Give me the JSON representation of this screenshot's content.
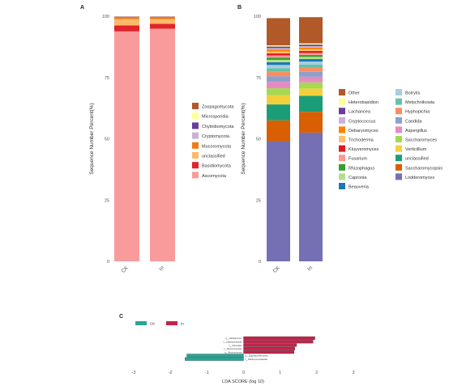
{
  "panel_labels": {
    "a": "A",
    "b": "B",
    "c": "C"
  },
  "chart_data": [
    {
      "panel": "A",
      "type": "bar",
      "stacked": true,
      "ylabel": "Sequence Number Percent(%)",
      "ylim": [
        0,
        100
      ],
      "yticks": [
        "0",
        "25",
        "50",
        "75",
        "100"
      ],
      "categories": [
        "CK",
        "In"
      ],
      "grid": false,
      "legend_position": "right",
      "series": [
        {
          "name": "Ascomycota",
          "color": "#fa9b9b",
          "values": [
            93.8,
            94.9
          ]
        },
        {
          "name": "Basidiomycota",
          "color": "#e3232a",
          "values": [
            2.4,
            2.0
          ]
        },
        {
          "name": "unclassified",
          "color": "#fcb96a",
          "values": [
            2.6,
            1.9
          ]
        },
        {
          "name": "Mucoromycota",
          "color": "#ef7b16",
          "values": [
            0.9,
            0.9
          ]
        },
        {
          "name": "Cryptomycota",
          "color": "#c9b3d7",
          "values": [
            0.1,
            0.1
          ]
        },
        {
          "name": "Chytridiomycota",
          "color": "#6a3d9a",
          "values": [
            0.1,
            0.1
          ]
        },
        {
          "name": "Microsporidia",
          "color": "#ffff99",
          "values": [
            0.05,
            0.05
          ]
        },
        {
          "name": "Zoopagomycota",
          "color": "#b15928",
          "values": [
            0.05,
            0.05
          ]
        }
      ]
    },
    {
      "panel": "B",
      "type": "bar",
      "stacked": true,
      "ylabel": "Sequence Number Percent(%)",
      "ylim": [
        0,
        100
      ],
      "yticks": [
        "0",
        "25",
        "50",
        "75",
        "100"
      ],
      "categories": [
        "CK",
        "In"
      ],
      "grid": false,
      "legend_position": "right",
      "series": [
        {
          "name": "Lodderomyces",
          "color": "#7570b3",
          "values": [
            49.0,
            52.5
          ]
        },
        {
          "name": "Saccharomycopsis",
          "color": "#d95f02",
          "values": [
            8.5,
            8.5
          ]
        },
        {
          "name": "unclassified",
          "color": "#1b9e77",
          "values": [
            6.5,
            6.5
          ]
        },
        {
          "name": "Verticillium",
          "color": "#f2d03a",
          "values": [
            3.8,
            3.0
          ]
        },
        {
          "name": "Saccharomyces",
          "color": "#a6d854",
          "values": [
            2.8,
            2.5
          ]
        },
        {
          "name": "Aspergillus",
          "color": "#e78ac3",
          "values": [
            2.6,
            2.3
          ]
        },
        {
          "name": "Candida",
          "color": "#8da0cb",
          "values": [
            2.3,
            2.0
          ]
        },
        {
          "name": "Hyphopichia",
          "color": "#fc8d62",
          "values": [
            1.8,
            1.6
          ]
        },
        {
          "name": "Metschnikowia",
          "color": "#66c2a5",
          "values": [
            1.5,
            1.4
          ]
        },
        {
          "name": "Botrytis",
          "color": "#a6cee3",
          "values": [
            1.3,
            1.2
          ]
        },
        {
          "name": "Beauveria",
          "color": "#1f78b4",
          "values": [
            1.1,
            1.0
          ]
        },
        {
          "name": "Capronia",
          "color": "#b2df8a",
          "values": [
            1.0,
            0.9
          ]
        },
        {
          "name": "Rhizophagus",
          "color": "#33a02c",
          "values": [
            0.9,
            0.8
          ]
        },
        {
          "name": "Fusarium",
          "color": "#fb9a99",
          "values": [
            0.9,
            0.8
          ]
        },
        {
          "name": "Kluyveromyces",
          "color": "#e31a1c",
          "values": [
            0.8,
            0.8
          ]
        },
        {
          "name": "Trichoderma",
          "color": "#fdbf6f",
          "values": [
            0.8,
            0.7
          ]
        },
        {
          "name": "Debaryomyces",
          "color": "#ff7f00",
          "values": [
            0.7,
            0.7
          ]
        },
        {
          "name": "Cryptococcus",
          "color": "#cab2d6",
          "values": [
            0.7,
            0.6
          ]
        },
        {
          "name": "Lachancea",
          "color": "#6a3d9a",
          "values": [
            0.6,
            0.6
          ]
        },
        {
          "name": "Heterobasidion",
          "color": "#ffff99",
          "values": [
            0.5,
            0.5
          ]
        },
        {
          "name": "Other",
          "color": "#b15928",
          "values": [
            11.1,
            10.7
          ]
        }
      ],
      "legend_order": [
        "Other",
        "Botrytis",
        "Heterobasidion",
        "Metschnikowia",
        "Lachancea",
        "Hyphopichia",
        "Cryptococcus",
        "Candida",
        "Debaryomyces",
        "Aspergillus",
        "Trichoderma",
        "Saccharomyces",
        "Kluyveromyces",
        "Verticillium",
        "Fusarium",
        "unclassified",
        "Rhizophagus",
        "Saccharomycopsis",
        "Capronia",
        "Lodderomyces",
        "Beauveria"
      ]
    },
    {
      "panel": "C",
      "type": "bar",
      "orientation": "horizontal",
      "xlabel": "LDA SCORE (log 10)",
      "xlim": [
        -3,
        3
      ],
      "xticks": [
        "-3",
        "-2",
        "-1",
        "0",
        "1",
        "2",
        "3"
      ],
      "grid": false,
      "legend_position": "top-left",
      "groups": [
        {
          "name": "CK",
          "color": "#2ca497"
        },
        {
          "name": "In",
          "color": "#c1244b"
        }
      ],
      "bars": [
        {
          "label": "g__Cladosporium",
          "group": "In",
          "value": 1.95
        },
        {
          "label": "f__Cladosporiaceae",
          "group": "In",
          "value": 1.9
        },
        {
          "label": "o__Mucorales",
          "group": "In",
          "value": 1.45
        },
        {
          "label": "c__Mucoromycetes",
          "group": "In",
          "value": 1.4
        },
        {
          "label": "p__Mucoromycota",
          "group": "In",
          "value": 1.38
        },
        {
          "label": "g__Zygosaccharomyces",
          "group": "CK",
          "value": -1.55
        },
        {
          "label": "f__Debaryomycetaceae",
          "group": "CK",
          "value": -1.6
        }
      ]
    }
  ]
}
